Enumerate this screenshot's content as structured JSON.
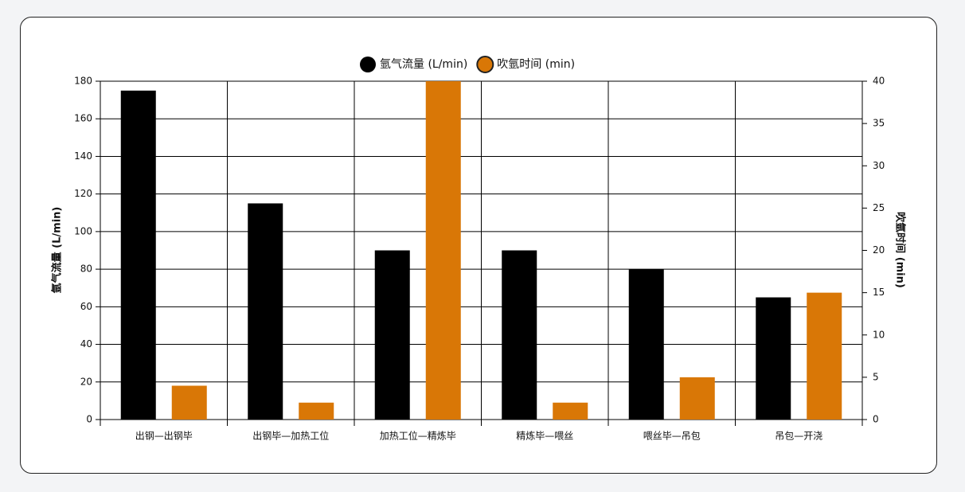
{
  "chart_data": {
    "type": "bar",
    "categories": [
      "出钢—出钢毕",
      "出钢毕—加热工位",
      "加热工位—精炼毕",
      "精炼毕—喂丝",
      "喂丝毕—吊包",
      "吊包—开浇"
    ],
    "series": [
      {
        "name": "氩气流量 (L/min)",
        "color": "#000000",
        "values": [
          175,
          115,
          90,
          90,
          80,
          65
        ]
      },
      {
        "name": "吹氩时间 (min)",
        "color": "#d97706",
        "axis": "y2",
        "values": [
          4,
          2,
          40,
          2,
          5,
          15
        ]
      }
    ],
    "y_label": "氩气流量 (L/min)",
    "y2_label": "吹氩时间 (min)",
    "ylim": [
      0,
      180
    ],
    "yticks": [
      0,
      20,
      40,
      60,
      80,
      100,
      120,
      140,
      160,
      180
    ],
    "y2lim": [
      0,
      40
    ],
    "y2ticks": [
      0,
      5,
      10,
      15,
      20,
      25,
      30,
      35,
      40
    ],
    "grid": true,
    "legend": "top"
  }
}
